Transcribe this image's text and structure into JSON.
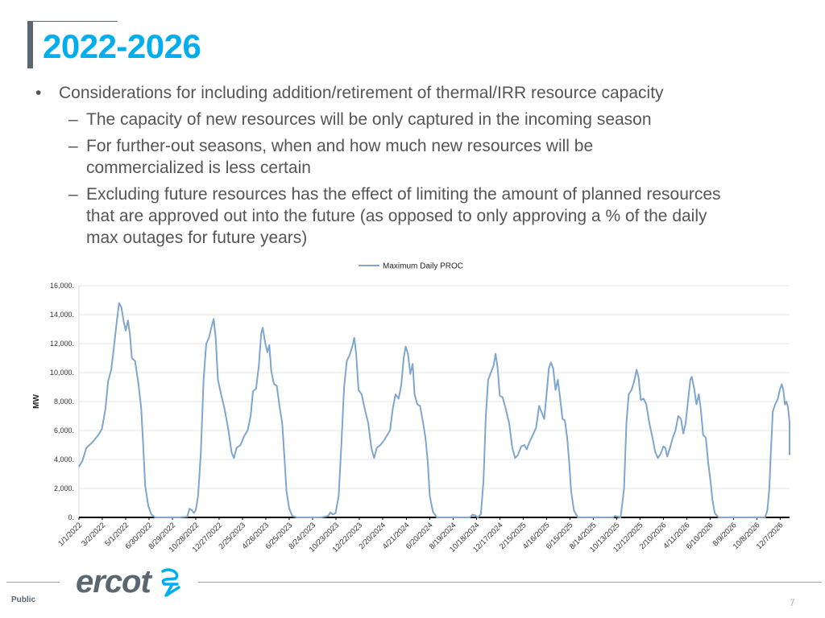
{
  "slide": {
    "title": "2022-2026",
    "bullets": [
      {
        "text": "Considerations for including addition/retirement of thermal/IRR resource capacity",
        "level": 1
      },
      {
        "text": "The capacity of new resources will be only captured in the incoming season",
        "level": 2
      },
      {
        "text": "For further-out seasons, when and how much new resources will be commercialized is less certain",
        "level": 2
      },
      {
        "text": "Excluding future resources has the effect of limiting the amount of planned resources that are approved out into the future (as opposed to only approving a % of the daily max outages for future years)",
        "level": 2
      }
    ],
    "bullet_symbol": "•",
    "dash_symbol": "–",
    "footer": {
      "public_label": "Public",
      "page_number": "7",
      "logo_text": "ercot"
    }
  },
  "colors": {
    "title": "#00aeef",
    "series": "#7fa6cf",
    "text": "#555555",
    "logo": "#5b6770",
    "logo_accent": "#00aeef"
  },
  "chart_data": {
    "type": "line",
    "title": "",
    "xlabel": "",
    "ylabel": "MW",
    "ylim": [
      0,
      16000
    ],
    "yticks": [
      0,
      2000,
      4000,
      6000,
      8000,
      10000,
      12000,
      14000,
      16000
    ],
    "ytick_labels": [
      "0.",
      "2,000.",
      "4,000.",
      "6,000.",
      "8,000.",
      "10,000.",
      "12,000.",
      "14,000.",
      "16,000."
    ],
    "xlim": [
      "1/1/2022",
      "12/31/2026"
    ],
    "xtick_labels": [
      "1/1/2022",
      "3/2/2022",
      "5/1/2022",
      "6/30/2022",
      "8/29/2022",
      "10/28/2022",
      "12/27/2022",
      "2/25/2023",
      "4/26/2023",
      "6/25/2023",
      "8/24/2023",
      "10/23/2023",
      "12/22/2023",
      "2/20/2024",
      "4/21/2024",
      "6/20/2024",
      "8/19/2024",
      "10/18/2024",
      "12/17/2024",
      "2/15/2025",
      "4/16/2025",
      "6/15/2025",
      "8/14/2025",
      "10/13/2025",
      "12/12/2025",
      "2/10/2026",
      "4/11/2026",
      "6/10/2026",
      "8/9/2026",
      "10/8/2026",
      "12/7/2026"
    ],
    "legend": {
      "position": "top-center"
    },
    "grid": {
      "y": true,
      "x": false
    },
    "series": [
      {
        "name": "Maximum Daily PROC",
        "points": [
          [
            "1/1/2022",
            3500
          ],
          [
            "1/10/2022",
            3900
          ],
          [
            "1/20/2022",
            4800
          ],
          [
            "2/5/2022",
            5200
          ],
          [
            "2/20/2022",
            5700
          ],
          [
            "3/1/2022",
            6100
          ],
          [
            "3/10/2022",
            7500
          ],
          [
            "3/17/2022",
            9400
          ],
          [
            "3/25/2022",
            10200
          ],
          [
            "4/1/2022",
            11800
          ],
          [
            "4/8/2022",
            13500
          ],
          [
            "4/14/2022",
            14800
          ],
          [
            "4/20/2022",
            14500
          ],
          [
            "4/26/2022",
            13500
          ],
          [
            "5/1/2022",
            12900
          ],
          [
            "5/7/2022",
            13600
          ],
          [
            "5/12/2022",
            12600
          ],
          [
            "5/17/2022",
            11000
          ],
          [
            "5/25/2022",
            10800
          ],
          [
            "6/3/2022",
            9200
          ],
          [
            "6/10/2022",
            7500
          ],
          [
            "6/15/2022",
            5000
          ],
          [
            "6/20/2022",
            2200
          ],
          [
            "6/28/2022",
            800
          ],
          [
            "7/6/2022",
            200
          ],
          [
            "7/16/2022",
            0
          ],
          [
            "8/15/2022",
            0
          ],
          [
            "9/15/2022",
            0
          ],
          [
            "10/6/2022",
            50
          ],
          [
            "10/12/2022",
            600
          ],
          [
            "10/18/2022",
            500
          ],
          [
            "10/23/2022",
            300
          ],
          [
            "10/28/2022",
            500
          ],
          [
            "11/3/2022",
            1500
          ],
          [
            "11/10/2022",
            4500
          ],
          [
            "11/17/2022",
            9500
          ],
          [
            "11/24/2022",
            12000
          ],
          [
            "12/1/2022",
            12400
          ],
          [
            "12/8/2022",
            13200
          ],
          [
            "12/13/2022",
            13700
          ],
          [
            "12/18/2022",
            12500
          ],
          [
            "12/24/2022",
            9500
          ],
          [
            "1/1/2023",
            8500
          ],
          [
            "1/10/2023",
            7500
          ],
          [
            "1/20/2023",
            6000
          ],
          [
            "1/28/2023",
            4500
          ],
          [
            "2/3/2023",
            4100
          ],
          [
            "2/10/2023",
            4800
          ],
          [
            "2/20/2023",
            5000
          ],
          [
            "3/1/2023",
            5600
          ],
          [
            "3/10/2023",
            6000
          ],
          [
            "3/18/2023",
            7000
          ],
          [
            "3/24/2023",
            8700
          ],
          [
            "4/1/2023",
            8900
          ],
          [
            "4/8/2023",
            10500
          ],
          [
            "4/14/2023",
            12700
          ],
          [
            "4/18/2023",
            13100
          ],
          [
            "4/24/2023",
            12100
          ],
          [
            "4/30/2023",
            11400
          ],
          [
            "5/5/2023",
            11900
          ],
          [
            "5/10/2023",
            10100
          ],
          [
            "5/17/2023",
            9200
          ],
          [
            "5/24/2023",
            9100
          ],
          [
            "6/1/2023",
            7500
          ],
          [
            "6/7/2023",
            6500
          ],
          [
            "6/13/2023",
            4000
          ],
          [
            "6/18/2023",
            1800
          ],
          [
            "6/25/2023",
            600
          ],
          [
            "7/3/2023",
            100
          ],
          [
            "7/15/2023",
            0
          ],
          [
            "8/15/2023",
            0
          ],
          [
            "9/15/2023",
            0
          ],
          [
            "10/3/2023",
            100
          ],
          [
            "10/9/2023",
            350
          ],
          [
            "10/15/2023",
            200
          ],
          [
            "10/22/2023",
            300
          ],
          [
            "10/30/2023",
            1500
          ],
          [
            "11/6/2023",
            5000
          ],
          [
            "11/13/2023",
            9000
          ],
          [
            "11/20/2023",
            10800
          ],
          [
            "11/27/2023",
            11200
          ],
          [
            "12/4/2023",
            11800
          ],
          [
            "12/9/2023",
            12400
          ],
          [
            "12/14/2023",
            11300
          ],
          [
            "12/20/2023",
            8800
          ],
          [
            "12/28/2023",
            8500
          ],
          [
            "1/5/2024",
            7500
          ],
          [
            "1/14/2024",
            6500
          ],
          [
            "1/22/2024",
            4800
          ],
          [
            "1/29/2024",
            4100
          ],
          [
            "2/5/2024",
            4800
          ],
          [
            "2/14/2024",
            5000
          ],
          [
            "2/23/2024",
            5300
          ],
          [
            "3/3/2024",
            5700
          ],
          [
            "3/10/2024",
            6000
          ],
          [
            "3/17/2024",
            7500
          ],
          [
            "3/24/2024",
            8500
          ],
          [
            "4/1/2024",
            8200
          ],
          [
            "4/8/2024",
            9200
          ],
          [
            "4/14/2024",
            11000
          ],
          [
            "4/19/2024",
            11800
          ],
          [
            "4/25/2024",
            11300
          ],
          [
            "5/1/2024",
            9900
          ],
          [
            "5/7/2024",
            10600
          ],
          [
            "5/12/2024",
            8500
          ],
          [
            "5/19/2024",
            7800
          ],
          [
            "5/26/2024",
            7700
          ],
          [
            "6/3/2024",
            6500
          ],
          [
            "6/9/2024",
            5500
          ],
          [
            "6/15/2024",
            3800
          ],
          [
            "6/20/2024",
            1500
          ],
          [
            "6/28/2024",
            400
          ],
          [
            "7/8/2024",
            0
          ],
          [
            "8/15/2024",
            0
          ],
          [
            "9/15/2024",
            0
          ],
          [
            "10/1/2024",
            0
          ],
          [
            "10/8/2024",
            200
          ],
          [
            "10/14/2024",
            150
          ],
          [
            "10/21/2024",
            0
          ],
          [
            "10/29/2024",
            200
          ],
          [
            "11/5/2024",
            2500
          ],
          [
            "11/11/2024",
            7000
          ],
          [
            "11/17/2024",
            9500
          ],
          [
            "11/24/2024",
            10000
          ],
          [
            "12/1/2024",
            10500
          ],
          [
            "12/6/2024",
            11300
          ],
          [
            "12/11/2024",
            10400
          ],
          [
            "12/17/2024",
            8400
          ],
          [
            "12/24/2024",
            8300
          ],
          [
            "1/1/2025",
            7500
          ],
          [
            "1/10/2025",
            6500
          ],
          [
            "1/18/2025",
            4800
          ],
          [
            "1/25/2025",
            4100
          ],
          [
            "2/1/2025",
            4300
          ],
          [
            "2/10/2025",
            4900
          ],
          [
            "2/18/2025",
            5000
          ],
          [
            "2/24/2025",
            4700
          ],
          [
            "3/3/2025",
            5200
          ],
          [
            "3/12/2025",
            5700
          ],
          [
            "3/20/2025",
            6200
          ],
          [
            "3/28/2025",
            7700
          ],
          [
            "4/4/2025",
            7200
          ],
          [
            "4/10/2025",
            6800
          ],
          [
            "4/16/2025",
            8500
          ],
          [
            "4/22/2025",
            10300
          ],
          [
            "4/27/2025",
            10700
          ],
          [
            "5/3/2025",
            10300
          ],
          [
            "5/9/2025",
            8800
          ],
          [
            "5/15/2025",
            9500
          ],
          [
            "5/21/2025",
            8200
          ],
          [
            "5/27/2025",
            6800
          ],
          [
            "6/2/2025",
            6700
          ],
          [
            "6/8/2025",
            5500
          ],
          [
            "6/13/2025",
            3800
          ],
          [
            "6/18/2025",
            1800
          ],
          [
            "6/25/2025",
            500
          ],
          [
            "7/5/2025",
            0
          ],
          [
            "8/15/2025",
            0
          ],
          [
            "9/15/2025",
            0
          ],
          [
            "10/3/2025",
            0
          ],
          [
            "10/9/2025",
            100
          ],
          [
            "10/16/2025",
            50
          ],
          [
            "10/23/2025",
            0
          ],
          [
            "11/1/2025",
            2000
          ],
          [
            "11/7/2025",
            6500
          ],
          [
            "11/13/2025",
            8500
          ],
          [
            "11/20/2025",
            8800
          ],
          [
            "11/27/2025",
            9400
          ],
          [
            "12/3/2025",
            10200
          ],
          [
            "12/8/2025",
            9700
          ],
          [
            "12/14/2025",
            8100
          ],
          [
            "12/21/2025",
            8200
          ],
          [
            "12/28/2025",
            7800
          ],
          [
            "1/5/2026",
            6500
          ],
          [
            "1/13/2026",
            5500
          ],
          [
            "1/20/2026",
            4500
          ],
          [
            "1/27/2026",
            4100
          ],
          [
            "2/3/2026",
            4400
          ],
          [
            "2/10/2026",
            4900
          ],
          [
            "2/15/2026",
            4800
          ],
          [
            "2/20/2026",
            4200
          ],
          [
            "2/27/2026",
            4800
          ],
          [
            "3/6/2026",
            5500
          ],
          [
            "3/13/2026",
            6000
          ],
          [
            "3/20/2026",
            7000
          ],
          [
            "3/27/2026",
            6800
          ],
          [
            "4/2/2026",
            5800
          ],
          [
            "4/8/2026",
            6500
          ],
          [
            "4/14/2026",
            8000
          ],
          [
            "4/20/2026",
            9500
          ],
          [
            "4/24/2026",
            9700
          ],
          [
            "4/30/2026",
            8900
          ],
          [
            "5/6/2026",
            7800
          ],
          [
            "5/12/2026",
            8500
          ],
          [
            "5/17/2026",
            7500
          ],
          [
            "5/23/2026",
            5700
          ],
          [
            "5/30/2026",
            5500
          ],
          [
            "6/5/2026",
            3800
          ],
          [
            "6/11/2026",
            2500
          ],
          [
            "6/16/2026",
            1200
          ],
          [
            "6/22/2026",
            300
          ],
          [
            "7/2/2026",
            0
          ],
          [
            "8/15/2026",
            0
          ],
          [
            "9/15/2026",
            0
          ],
          [
            "10/15/2026",
            0
          ],
          [
            "10/29/2026",
            0
          ],
          [
            "11/4/2026",
            500
          ],
          [
            "11/9/2026",
            2000
          ],
          [
            "11/13/2026",
            4500
          ],
          [
            "11/18/2026",
            7300
          ],
          [
            "11/24/2026",
            7800
          ],
          [
            "12/1/2026",
            8200
          ],
          [
            "12/6/2026",
            8800
          ],
          [
            "12/11/2026",
            9200
          ],
          [
            "12/15/2026",
            8800
          ],
          [
            "12/19/2026",
            7800
          ],
          [
            "12/23/2026",
            8000
          ],
          [
            "12/27/2026",
            7600
          ],
          [
            "1/1/2027",
            6600
          ],
          [
            "1/6/2027",
            5600
          ],
          [
            "1/10/2027",
            4300
          ]
        ]
      }
    ]
  }
}
